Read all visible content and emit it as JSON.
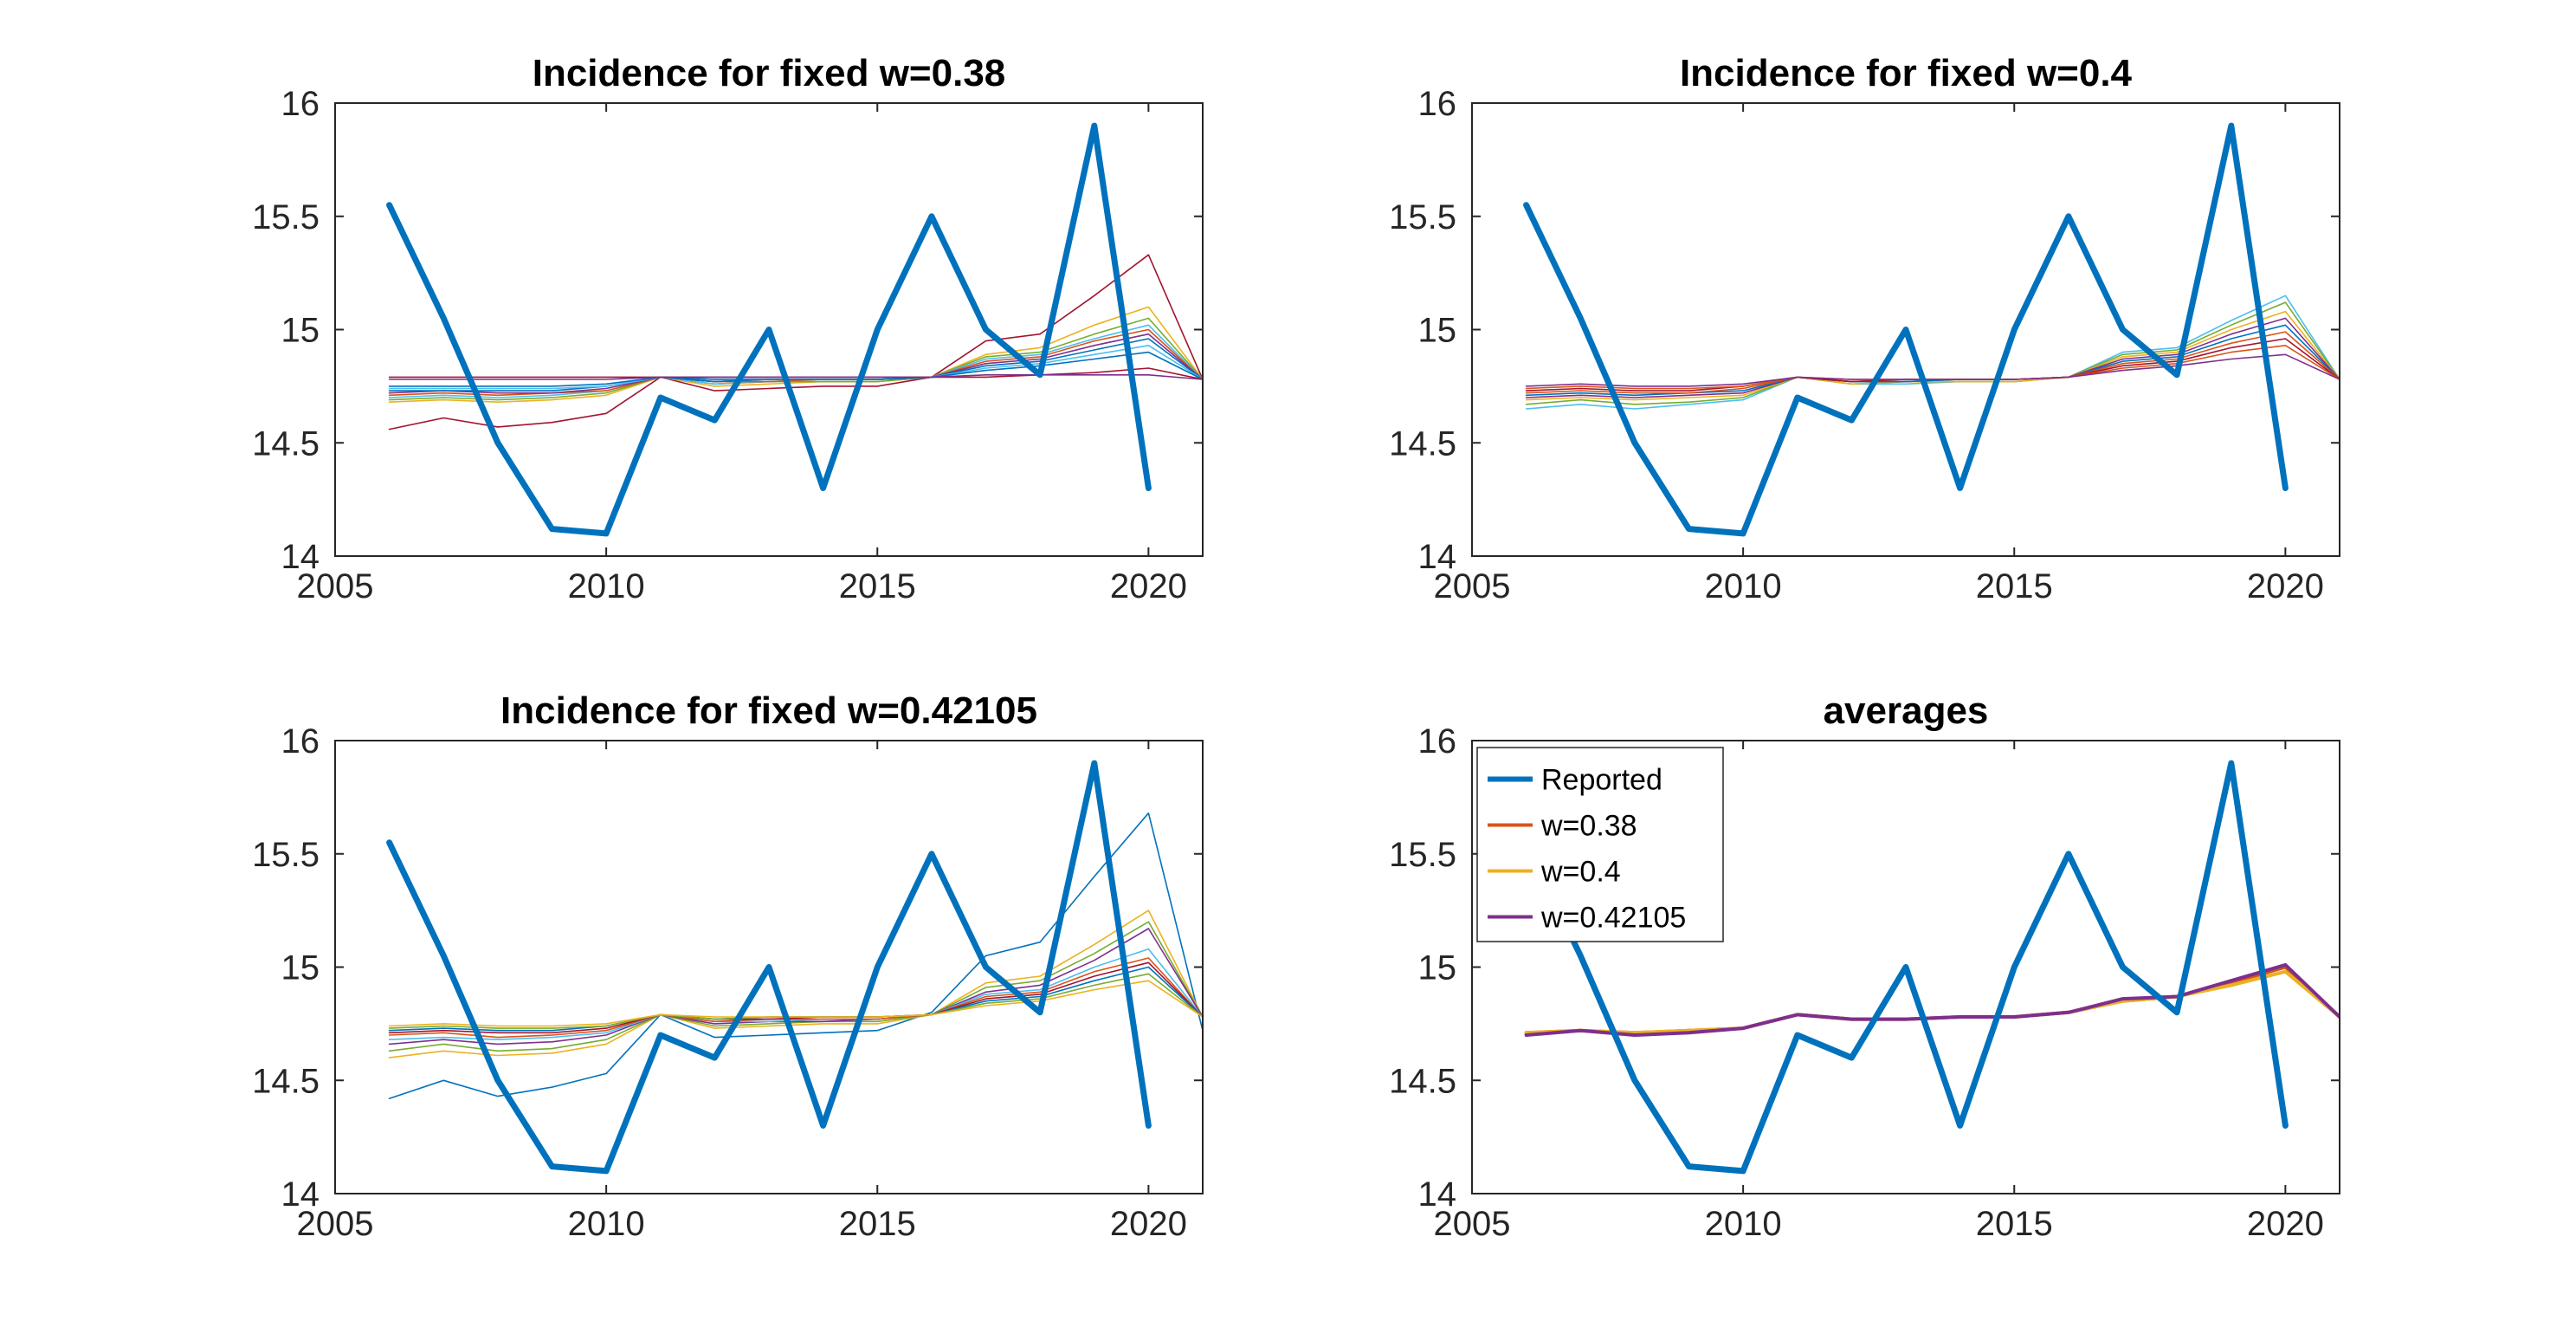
{
  "chart_data": [
    {
      "type": "line",
      "title": "Incidence for fixed w=0.38",
      "xlim": [
        2005,
        2021
      ],
      "ylim": [
        14,
        16
      ],
      "xticks": [
        2005,
        2010,
        2015,
        2020
      ],
      "yticks": [
        14,
        14.5,
        15,
        15.5,
        16
      ],
      "xtick_labels": [
        "2005",
        "2010",
        "2015",
        "2020"
      ],
      "ytick_labels": [
        "14",
        "14.5",
        "15",
        "15.5",
        "16"
      ],
      "grid": false,
      "reported": {
        "name": "Reported",
        "color": "#0072BD",
        "x": [
          2006,
          2007,
          2008,
          2009,
          2010,
          2011,
          2012,
          2013,
          2014,
          2015,
          2016,
          2017,
          2018,
          2019,
          2020
        ],
        "values": [
          15.55,
          15.05,
          14.5,
          14.12,
          14.1,
          14.7,
          14.6,
          15.0,
          14.3,
          15.0,
          15.5,
          15.0,
          14.8,
          15.9,
          14.3
        ]
      },
      "ensemble_x": [
        2006,
        2007,
        2008,
        2009,
        2010,
        2011,
        2012,
        2013,
        2014,
        2015,
        2016,
        2017,
        2018,
        2019,
        2020,
        2021
      ],
      "ensemble": [
        {
          "color": "#A2142F",
          "values": [
            14.56,
            14.61,
            14.57,
            14.59,
            14.63,
            14.79,
            14.73,
            14.74,
            14.75,
            14.75,
            14.79,
            14.95,
            14.98,
            15.15,
            15.33,
            14.78
          ]
        },
        {
          "color": "#EDB120",
          "values": [
            14.68,
            14.69,
            14.68,
            14.69,
            14.71,
            14.79,
            14.75,
            14.76,
            14.77,
            14.77,
            14.79,
            14.89,
            14.92,
            15.02,
            15.1,
            14.78
          ]
        },
        {
          "color": "#77AC30",
          "values": [
            14.69,
            14.7,
            14.69,
            14.7,
            14.72,
            14.79,
            14.76,
            14.77,
            14.77,
            14.77,
            14.79,
            14.88,
            14.9,
            14.98,
            15.05,
            14.78
          ]
        },
        {
          "color": "#4DBEEE",
          "values": [
            14.7,
            14.71,
            14.7,
            14.71,
            14.73,
            14.79,
            14.76,
            14.77,
            14.78,
            14.78,
            14.79,
            14.87,
            14.89,
            14.96,
            15.02,
            14.78
          ]
        },
        {
          "color": "#D95319",
          "values": [
            14.71,
            14.72,
            14.71,
            14.72,
            14.73,
            14.79,
            14.77,
            14.77,
            14.78,
            14.78,
            14.79,
            14.86,
            14.88,
            14.95,
            15.0,
            14.78
          ]
        },
        {
          "color": "#7E2F8E",
          "values": [
            14.72,
            14.73,
            14.72,
            14.72,
            14.74,
            14.79,
            14.77,
            14.78,
            14.78,
            14.78,
            14.79,
            14.85,
            14.87,
            14.93,
            14.98,
            14.78
          ]
        },
        {
          "color": "#0072BD",
          "values": [
            14.73,
            14.73,
            14.73,
            14.73,
            14.75,
            14.79,
            14.77,
            14.78,
            14.78,
            14.78,
            14.79,
            14.84,
            14.86,
            14.91,
            14.96,
            14.78
          ]
        },
        {
          "color": "#4DBEEE",
          "values": [
            14.74,
            14.74,
            14.74,
            14.74,
            14.75,
            14.79,
            14.78,
            14.78,
            14.78,
            14.78,
            14.79,
            14.83,
            14.85,
            14.89,
            14.93,
            14.78
          ]
        },
        {
          "color": "#0072BD",
          "values": [
            14.75,
            14.75,
            14.75,
            14.75,
            14.76,
            14.79,
            14.78,
            14.78,
            14.78,
            14.78,
            14.79,
            14.82,
            14.84,
            14.87,
            14.9,
            14.78
          ]
        },
        {
          "color": "#A2142F",
          "values": [
            14.79,
            14.79,
            14.79,
            14.79,
            14.79,
            14.79,
            14.79,
            14.79,
            14.79,
            14.79,
            14.79,
            14.79,
            14.8,
            14.81,
            14.83,
            14.78
          ]
        },
        {
          "color": "#7E2F8E",
          "values": [
            14.78,
            14.78,
            14.78,
            14.78,
            14.78,
            14.79,
            14.79,
            14.79,
            14.79,
            14.79,
            14.79,
            14.8,
            14.8,
            14.8,
            14.8,
            14.78
          ]
        }
      ]
    },
    {
      "type": "line",
      "title": "Incidence for fixed w=0.4",
      "xlim": [
        2005,
        2021
      ],
      "ylim": [
        14,
        16
      ],
      "xticks": [
        2005,
        2010,
        2015,
        2020
      ],
      "yticks": [
        14,
        14.5,
        15,
        15.5,
        16
      ],
      "xtick_labels": [
        "2005",
        "2010",
        "2015",
        "2020"
      ],
      "ytick_labels": [
        "14",
        "14.5",
        "15",
        "15.5",
        "16"
      ],
      "grid": false,
      "reported": {
        "name": "Reported",
        "color": "#0072BD",
        "x": [
          2006,
          2007,
          2008,
          2009,
          2010,
          2011,
          2012,
          2013,
          2014,
          2015,
          2016,
          2017,
          2018,
          2019,
          2020
        ],
        "values": [
          15.55,
          15.05,
          14.5,
          14.12,
          14.1,
          14.7,
          14.6,
          15.0,
          14.3,
          15.0,
          15.5,
          15.0,
          14.8,
          15.9,
          14.3
        ]
      },
      "ensemble_x": [
        2006,
        2007,
        2008,
        2009,
        2010,
        2011,
        2012,
        2013,
        2014,
        2015,
        2016,
        2017,
        2018,
        2019,
        2020,
        2021
      ],
      "ensemble": [
        {
          "color": "#4DBEEE",
          "values": [
            14.65,
            14.67,
            14.65,
            14.67,
            14.69,
            14.79,
            14.76,
            14.76,
            14.77,
            14.77,
            14.79,
            14.9,
            14.92,
            15.04,
            15.15,
            14.78
          ]
        },
        {
          "color": "#77AC30",
          "values": [
            14.67,
            14.69,
            14.67,
            14.68,
            14.7,
            14.79,
            14.76,
            14.77,
            14.77,
            14.77,
            14.79,
            14.89,
            14.91,
            15.02,
            15.12,
            14.78
          ]
        },
        {
          "color": "#EDB120",
          "values": [
            14.69,
            14.7,
            14.69,
            14.7,
            14.71,
            14.79,
            14.76,
            14.77,
            14.77,
            14.77,
            14.79,
            14.88,
            14.9,
            15.0,
            15.08,
            14.78
          ]
        },
        {
          "color": "#7E2F8E",
          "values": [
            14.7,
            14.71,
            14.7,
            14.71,
            14.72,
            14.79,
            14.77,
            14.77,
            14.78,
            14.78,
            14.79,
            14.87,
            14.89,
            14.98,
            15.05,
            14.78
          ]
        },
        {
          "color": "#0072BD",
          "values": [
            14.71,
            14.72,
            14.71,
            14.72,
            14.73,
            14.79,
            14.77,
            14.77,
            14.78,
            14.78,
            14.79,
            14.86,
            14.88,
            14.96,
            15.02,
            14.78
          ]
        },
        {
          "color": "#D95319",
          "values": [
            14.72,
            14.73,
            14.72,
            14.72,
            14.74,
            14.79,
            14.77,
            14.78,
            14.78,
            14.78,
            14.79,
            14.85,
            14.87,
            14.94,
            14.99,
            14.78
          ]
        },
        {
          "color": "#A2142F",
          "values": [
            14.73,
            14.74,
            14.73,
            14.73,
            14.75,
            14.79,
            14.77,
            14.78,
            14.78,
            14.78,
            14.79,
            14.84,
            14.86,
            14.92,
            14.96,
            14.78
          ]
        },
        {
          "color": "#D95319",
          "values": [
            14.74,
            14.75,
            14.74,
            14.74,
            14.75,
            14.79,
            14.78,
            14.78,
            14.78,
            14.78,
            14.79,
            14.83,
            14.85,
            14.9,
            14.93,
            14.78
          ]
        },
        {
          "color": "#7E2F8E",
          "values": [
            14.75,
            14.76,
            14.75,
            14.75,
            14.76,
            14.79,
            14.78,
            14.78,
            14.78,
            14.78,
            14.79,
            14.82,
            14.84,
            14.87,
            14.89,
            14.78
          ]
        }
      ]
    },
    {
      "type": "line",
      "title": "Incidence for fixed w=0.42105",
      "xlim": [
        2005,
        2021
      ],
      "ylim": [
        14,
        16
      ],
      "xticks": [
        2005,
        2010,
        2015,
        2020
      ],
      "yticks": [
        14,
        14.5,
        15,
        15.5,
        16
      ],
      "xtick_labels": [
        "2005",
        "2010",
        "2015",
        "2020"
      ],
      "ytick_labels": [
        "14",
        "14.5",
        "15",
        "15.5",
        "16"
      ],
      "grid": false,
      "reported": {
        "name": "Reported",
        "color": "#0072BD",
        "x": [
          2006,
          2007,
          2008,
          2009,
          2010,
          2011,
          2012,
          2013,
          2014,
          2015,
          2016,
          2017,
          2018,
          2019,
          2020
        ],
        "values": [
          15.55,
          15.05,
          14.5,
          14.12,
          14.1,
          14.7,
          14.6,
          15.0,
          14.3,
          15.0,
          15.5,
          15.0,
          14.8,
          15.9,
          14.3
        ]
      },
      "ensemble_x": [
        2006,
        2007,
        2008,
        2009,
        2010,
        2011,
        2012,
        2013,
        2014,
        2015,
        2016,
        2017,
        2018,
        2019,
        2020,
        2021
      ],
      "ensemble": [
        {
          "color": "#0072BD",
          "values": [
            14.42,
            14.5,
            14.43,
            14.47,
            14.53,
            14.79,
            14.69,
            14.7,
            14.71,
            14.72,
            14.8,
            15.05,
            15.11,
            15.4,
            15.68,
            14.72
          ]
        },
        {
          "color": "#EDB120",
          "values": [
            14.6,
            14.63,
            14.61,
            14.62,
            14.66,
            14.79,
            14.73,
            14.74,
            14.75,
            14.75,
            14.79,
            14.93,
            14.96,
            15.1,
            15.25,
            14.78
          ]
        },
        {
          "color": "#77AC30",
          "values": [
            14.63,
            14.66,
            14.63,
            14.64,
            14.68,
            14.79,
            14.74,
            14.75,
            14.76,
            14.76,
            14.79,
            14.91,
            14.94,
            15.06,
            15.2,
            14.78
          ]
        },
        {
          "color": "#7E2F8E",
          "values": [
            14.66,
            14.68,
            14.66,
            14.67,
            14.7,
            14.79,
            14.75,
            14.76,
            14.76,
            14.77,
            14.79,
            14.89,
            14.92,
            15.03,
            15.17,
            14.78
          ]
        },
        {
          "color": "#4DBEEE",
          "values": [
            14.68,
            14.69,
            14.68,
            14.69,
            14.71,
            14.79,
            14.76,
            14.76,
            14.77,
            14.77,
            14.79,
            14.88,
            14.9,
            15.0,
            15.08,
            14.78
          ]
        },
        {
          "color": "#D95319",
          "values": [
            14.7,
            14.71,
            14.69,
            14.7,
            14.72,
            14.79,
            14.76,
            14.77,
            14.77,
            14.77,
            14.79,
            14.87,
            14.89,
            14.98,
            15.04,
            14.78
          ]
        },
        {
          "color": "#A2142F",
          "values": [
            14.71,
            14.72,
            14.71,
            14.71,
            14.73,
            14.79,
            14.77,
            14.77,
            14.78,
            14.78,
            14.79,
            14.86,
            14.88,
            14.96,
            15.02,
            14.78
          ]
        },
        {
          "color": "#0072BD",
          "values": [
            14.72,
            14.73,
            14.72,
            14.72,
            14.74,
            14.79,
            14.77,
            14.78,
            14.78,
            14.78,
            14.79,
            14.85,
            14.87,
            14.94,
            15.0,
            14.78
          ]
        },
        {
          "color": "#77AC30",
          "values": [
            14.73,
            14.74,
            14.73,
            14.73,
            14.74,
            14.79,
            14.77,
            14.78,
            14.78,
            14.78,
            14.79,
            14.84,
            14.86,
            14.92,
            14.97,
            14.78
          ]
        },
        {
          "color": "#EDB120",
          "values": [
            14.74,
            14.75,
            14.74,
            14.74,
            14.75,
            14.79,
            14.78,
            14.78,
            14.78,
            14.78,
            14.79,
            14.83,
            14.85,
            14.9,
            14.94,
            14.78
          ]
        }
      ]
    },
    {
      "type": "line",
      "title": "averages",
      "xlim": [
        2005,
        2021
      ],
      "ylim": [
        14,
        16
      ],
      "xticks": [
        2005,
        2010,
        2015,
        2020
      ],
      "yticks": [
        14,
        14.5,
        15,
        15.5,
        16
      ],
      "xtick_labels": [
        "2005",
        "2010",
        "2015",
        "2020"
      ],
      "ytick_labels": [
        "14",
        "14.5",
        "15",
        "15.5",
        "16"
      ],
      "grid": false,
      "legend_position": "top-left",
      "reported": {
        "name": "Reported",
        "color": "#0072BD",
        "x": [
          2006,
          2007,
          2008,
          2009,
          2010,
          2011,
          2012,
          2013,
          2014,
          2015,
          2016,
          2017,
          2018,
          2019,
          2020
        ],
        "values": [
          15.55,
          15.05,
          14.5,
          14.12,
          14.1,
          14.7,
          14.6,
          15.0,
          14.3,
          15.0,
          15.5,
          15.0,
          14.8,
          15.9,
          14.3
        ]
      },
      "series": [
        {
          "name": "w=0.38",
          "color": "#D95319",
          "x": [
            2006,
            2007,
            2008,
            2009,
            2010,
            2011,
            2012,
            2013,
            2014,
            2015,
            2016,
            2017,
            2018,
            2019,
            2020,
            2021
          ],
          "values": [
            14.71,
            14.72,
            14.71,
            14.72,
            14.73,
            14.79,
            14.77,
            14.77,
            14.78,
            14.78,
            14.8,
            14.85,
            14.87,
            14.93,
            15.0,
            14.78
          ]
        },
        {
          "name": "w=0.4",
          "color": "#EDB120",
          "x": [
            2006,
            2007,
            2008,
            2009,
            2010,
            2011,
            2012,
            2013,
            2014,
            2015,
            2016,
            2017,
            2018,
            2019,
            2020,
            2021
          ],
          "values": [
            14.71,
            14.72,
            14.71,
            14.72,
            14.73,
            14.79,
            14.77,
            14.77,
            14.78,
            14.78,
            14.8,
            14.85,
            14.87,
            14.92,
            14.98,
            14.78
          ]
        },
        {
          "name": "w=0.42105",
          "color": "#7E2F8E",
          "x": [
            2006,
            2007,
            2008,
            2009,
            2010,
            2011,
            2012,
            2013,
            2014,
            2015,
            2016,
            2017,
            2018,
            2019,
            2020,
            2021
          ],
          "values": [
            14.7,
            14.72,
            14.7,
            14.71,
            14.73,
            14.79,
            14.77,
            14.77,
            14.78,
            14.78,
            14.8,
            14.86,
            14.87,
            14.94,
            15.01,
            14.78
          ]
        }
      ]
    }
  ]
}
